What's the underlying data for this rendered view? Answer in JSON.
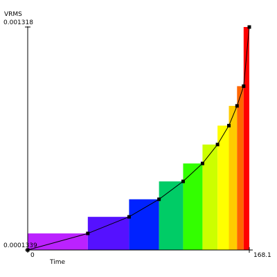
{
  "chart_data": {
    "type": "bar",
    "title": "",
    "xlabel": "Time",
    "ylabel": "VRMS",
    "x_min_label": "0",
    "x_max_label": "168.1",
    "y_min_label": "0.0001339",
    "y_max_label": "0.001318",
    "xlim": [
      0,
      168.1
    ],
    "ylim": [
      0.0001339,
      0.001318
    ],
    "grid": false,
    "legend": "none",
    "bars": [
      {
        "x0": 0.0,
        "x1": 45.6,
        "value": 0.0002219,
        "color": "#bb22ff"
      },
      {
        "x0": 45.6,
        "x1": 76.9,
        "value": 0.0003099,
        "color": "#5511ff"
      },
      {
        "x0": 76.9,
        "x1": 99.6,
        "value": 0.0004032,
        "color": "#0022ff"
      },
      {
        "x0": 99.6,
        "x1": 117.9,
        "value": 0.0004982,
        "color": "#00cc66"
      },
      {
        "x0": 117.9,
        "x1": 132.6,
        "value": 0.0005934,
        "color": "#33ff00"
      },
      {
        "x0": 132.6,
        "x1": 144.0,
        "value": 0.0006939,
        "color": "#ccff00"
      },
      {
        "x0": 144.0,
        "x1": 152.6,
        "value": 0.0007944,
        "color": "#ffff00"
      },
      {
        "x0": 152.6,
        "x1": 158.8,
        "value": 0.0008992,
        "color": "#ffcc00"
      },
      {
        "x0": 158.8,
        "x1": 163.8,
        "value": 0.0010039,
        "color": "#ff6600"
      },
      {
        "x0": 163.8,
        "x1": 168.1,
        "value": 0.001318,
        "color": "#ff0000"
      }
    ],
    "line": {
      "x": [
        0,
        45.6,
        76.9,
        99.6,
        117.9,
        132.6,
        144.0,
        152.6,
        158.8,
        163.8,
        168.1
      ],
      "y": [
        0.0001339,
        0.0002219,
        0.0003099,
        0.0004032,
        0.0004982,
        0.0005934,
        0.0006939,
        0.0007944,
        0.0008992,
        0.0010039,
        0.001318
      ]
    },
    "line_color": "#000000"
  }
}
